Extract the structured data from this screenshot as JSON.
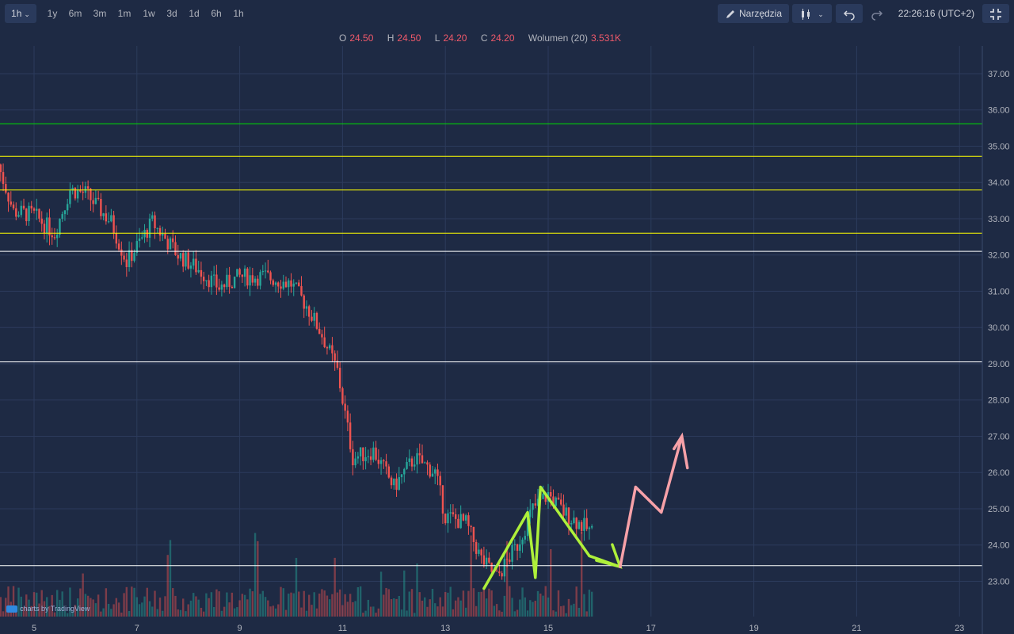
{
  "toolbar": {
    "interval": "1h",
    "ranges": [
      "1y",
      "6m",
      "3m",
      "1m",
      "1w",
      "3d",
      "1d",
      "6h",
      "1h"
    ],
    "tools_label": "Narzędzia",
    "clock": "22:26:16 (UTC+2)"
  },
  "legend": {
    "o_label": "O",
    "o": "24.50",
    "h_label": "H",
    "h": "24.50",
    "l_label": "L",
    "l": "24.20",
    "c_label": "C",
    "c": "24.20",
    "vol_label": "Wolumen (20)",
    "vol": "3.531K"
  },
  "watermark": "charts by TradingView",
  "colors": {
    "bg": "#1e2a44",
    "up": "#26a69a",
    "down": "#ef5350",
    "green_line": "#00e000",
    "yellow_line": "#ffff00",
    "white_line": "#ffffff",
    "annot_green": "#aef03a",
    "annot_pink": "#f7a1a8"
  },
  "chart_data": {
    "type": "candlestick",
    "y_ticks": [
      "23.00",
      "24.00",
      "25.00",
      "26.00",
      "27.00",
      "28.00",
      "29.00",
      "30.00",
      "31.00",
      "32.00",
      "33.00",
      "34.00",
      "35.00",
      "36.00",
      "37.00"
    ],
    "x_ticks": [
      "5",
      "7",
      "9",
      "11",
      "13",
      "15",
      "17",
      "19",
      "21",
      "23"
    ],
    "ylim": [
      22.0,
      37.5
    ],
    "horizontal_levels": [
      {
        "value": 35.62,
        "label": "35.62",
        "color": "green"
      },
      {
        "value": 34.72,
        "label": "34.72",
        "color": "yellow"
      },
      {
        "value": 33.79,
        "label": "33.79",
        "color": "yellow"
      },
      {
        "value": 32.6,
        "label": "32.60",
        "color": "yellow"
      },
      {
        "value": 32.1,
        "label": "32.10",
        "color": "white"
      },
      {
        "value": 29.05,
        "label": "29.05",
        "color": "white"
      },
      {
        "value": 23.43,
        "label": "23.43",
        "color": "white"
      }
    ],
    "price_path": [
      {
        "day": 4.3,
        "price": 34.5
      },
      {
        "day": 4.6,
        "price": 33.2
      },
      {
        "day": 5.0,
        "price": 33.1
      },
      {
        "day": 5.4,
        "price": 32.6
      },
      {
        "day": 5.7,
        "price": 33.8
      },
      {
        "day": 6.0,
        "price": 33.7
      },
      {
        "day": 6.5,
        "price": 32.9
      },
      {
        "day": 6.8,
        "price": 31.8
      },
      {
        "day": 7.3,
        "price": 32.9
      },
      {
        "day": 7.8,
        "price": 32.0
      },
      {
        "day": 8.2,
        "price": 31.6
      },
      {
        "day": 8.6,
        "price": 31.1
      },
      {
        "day": 9.0,
        "price": 31.4
      },
      {
        "day": 9.5,
        "price": 31.4
      },
      {
        "day": 10.0,
        "price": 31.2
      },
      {
        "day": 10.3,
        "price": 30.6
      },
      {
        "day": 10.6,
        "price": 29.8
      },
      {
        "day": 10.9,
        "price": 28.8
      },
      {
        "day": 11.2,
        "price": 26.4
      },
      {
        "day": 11.6,
        "price": 26.6
      },
      {
        "day": 12.0,
        "price": 25.6
      },
      {
        "day": 12.4,
        "price": 26.4
      },
      {
        "day": 12.8,
        "price": 26.0
      },
      {
        "day": 13.0,
        "price": 24.8
      },
      {
        "day": 13.4,
        "price": 24.6
      },
      {
        "day": 13.7,
        "price": 23.6
      },
      {
        "day": 14.0,
        "price": 23.1
      },
      {
        "day": 14.4,
        "price": 24.0
      },
      {
        "day": 14.7,
        "price": 25.0
      },
      {
        "day": 15.0,
        "price": 25.4
      },
      {
        "day": 15.3,
        "price": 24.9
      },
      {
        "day": 15.6,
        "price": 24.6
      },
      {
        "day": 15.9,
        "price": 24.3
      }
    ],
    "annotations": [
      {
        "color": "green",
        "points": [
          [
            13.75,
            22.8
          ],
          [
            14.6,
            24.9
          ],
          [
            14.75,
            23.1
          ],
          [
            14.85,
            25.6
          ],
          [
            15.8,
            23.7
          ]
        ]
      },
      {
        "color": "green-arrow",
        "from": [
          15.8,
          23.7
        ],
        "to": [
          16.4,
          23.4
        ]
      },
      {
        "color": "pink",
        "points": [
          [
            16.4,
            23.4
          ],
          [
            16.7,
            25.6
          ],
          [
            17.2,
            24.9
          ],
          [
            17.6,
            27.0
          ]
        ]
      }
    ]
  }
}
